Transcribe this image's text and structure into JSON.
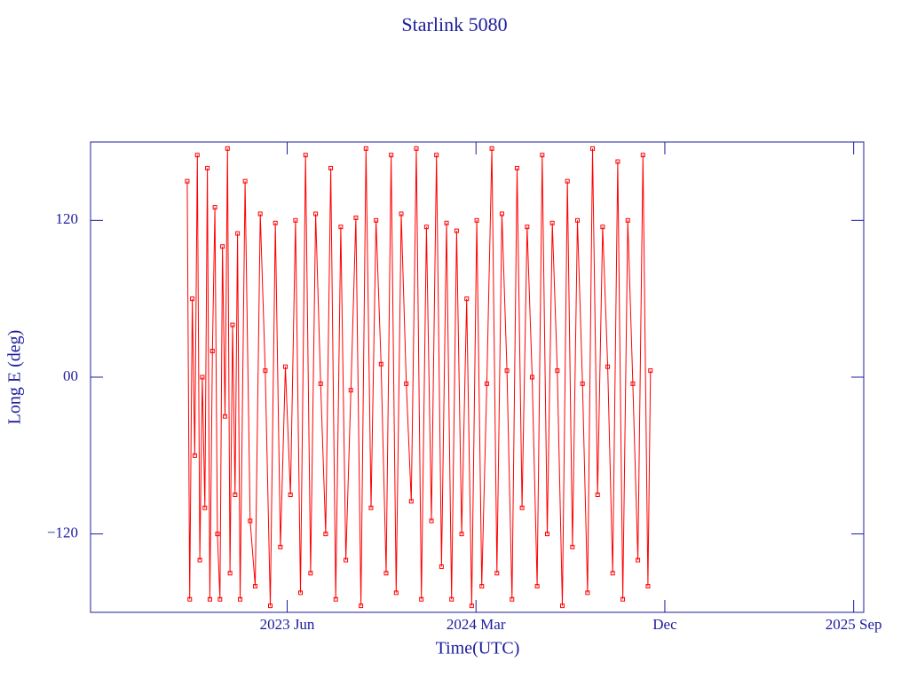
{
  "chart_data": {
    "type": "line",
    "title": "Starlink 5080",
    "x_label": "Time(UTC)",
    "y_label": "Long E (deg)",
    "xlim": [
      2022.636,
      2025.707
    ],
    "ylim": [
      -180,
      180
    ],
    "xticks": [
      {
        "value": 2023.417,
        "label": "2023 Jun"
      },
      {
        "value": 2024.167,
        "label": "2024 Mar"
      },
      {
        "value": 2024.917,
        "label": "Dec"
      },
      {
        "value": 2025.667,
        "label": "2025 Sep"
      }
    ],
    "yticks": [
      {
        "value": -120,
        "label": "−120"
      },
      {
        "value": 0,
        "label": "00"
      },
      120
    ],
    "grid": false,
    "markers": true,
    "series": [
      {
        "color": "#ff0000",
        "x": [
          2023.02,
          2023.03,
          2023.04,
          2023.05,
          2023.06,
          2023.07,
          2023.08,
          2023.09,
          2023.1,
          2023.11,
          2023.12,
          2023.13,
          2023.14,
          2023.15,
          2023.16,
          2023.17,
          2023.18,
          2023.19,
          2023.2,
          2023.21,
          2023.22,
          2023.23,
          2023.25,
          2023.27,
          2023.29,
          2023.31,
          2023.33,
          2023.35,
          2023.37,
          2023.39,
          2023.41,
          2023.43,
          2023.45,
          2023.47,
          2023.49,
          2023.51,
          2023.53,
          2023.55,
          2023.57,
          2023.59,
          2023.61,
          2023.63,
          2023.65,
          2023.67,
          2023.69,
          2023.71,
          2023.73,
          2023.75,
          2023.77,
          2023.79,
          2023.81,
          2023.83,
          2023.85,
          2023.87,
          2023.89,
          2023.91,
          2023.93,
          2023.95,
          2023.97,
          2023.99,
          2024.01,
          2024.03,
          2024.05,
          2024.07,
          2024.09,
          2024.11,
          2024.13,
          2024.15,
          2024.17,
          2024.19,
          2024.21,
          2024.23,
          2024.25,
          2024.27,
          2024.29,
          2024.31,
          2024.33,
          2024.35,
          2024.37,
          2024.39,
          2024.41,
          2024.43,
          2024.45,
          2024.47,
          2024.49,
          2024.51,
          2024.53,
          2024.55,
          2024.57,
          2024.59,
          2024.61,
          2024.63,
          2024.65,
          2024.67,
          2024.69,
          2024.71,
          2024.73,
          2024.75,
          2024.77,
          2024.79,
          2024.81,
          2024.83,
          2024.85,
          2024.86
        ],
        "values": [
          150,
          -170,
          60,
          -60,
          170,
          -140,
          0,
          -100,
          160,
          -170,
          20,
          130,
          -120,
          -170,
          100,
          -30,
          175,
          -150,
          40,
          -90,
          110,
          -170,
          150,
          -110,
          -160,
          125,
          5,
          -175,
          118,
          -130,
          8,
          -90,
          120,
          -165,
          170,
          -150,
          125,
          -5,
          -120,
          160,
          -170,
          115,
          -140,
          -10,
          122,
          -175,
          175,
          -100,
          120,
          10,
          -150,
          170,
          -165,
          125,
          -5,
          -95,
          175,
          -170,
          115,
          -110,
          170,
          -145,
          118,
          -170,
          112,
          -120,
          60,
          -175,
          120,
          -160,
          -5,
          175,
          -150,
          125,
          5,
          -170,
          160,
          -100,
          115,
          0,
          -160,
          170,
          -120,
          118,
          5,
          -175,
          150,
          -130,
          120,
          -5,
          -165,
          175,
          -90,
          115,
          8,
          -150,
          165,
          -170,
          120,
          -5,
          -140,
          170,
          -160,
          5
        ]
      }
    ]
  }
}
